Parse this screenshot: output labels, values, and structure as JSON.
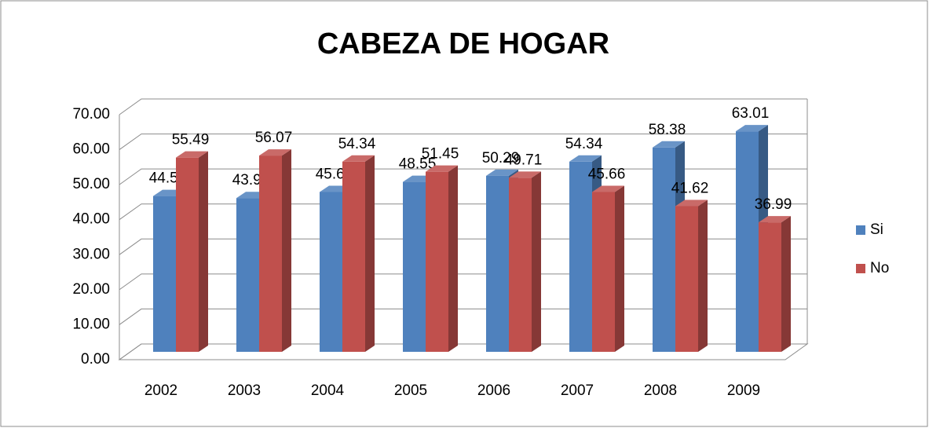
{
  "chart_data": {
    "type": "bar3d",
    "title": "CABEZA DE HOGAR",
    "categories": [
      "2002",
      "2003",
      "2004",
      "2005",
      "2006",
      "2007",
      "2008",
      "2009"
    ],
    "series": [
      {
        "name": "Si",
        "color": "#4f81bd",
        "values": [
          44.51,
          43.93,
          45.66,
          48.55,
          50.29,
          54.34,
          58.38,
          63.01
        ]
      },
      {
        "name": "No",
        "color": "#c0504d",
        "values": [
          55.49,
          56.07,
          54.34,
          51.45,
          49.71,
          45.66,
          41.62,
          36.99
        ]
      }
    ],
    "ylim": [
      0,
      70
    ],
    "yticks": [
      {
        "value": 0,
        "label": "0.00"
      },
      {
        "value": 10,
        "label": "10.00"
      },
      {
        "value": 20,
        "label": "20.00"
      },
      {
        "value": 30,
        "label": "30.00"
      },
      {
        "value": 40,
        "label": "40.00"
      },
      {
        "value": 50,
        "label": "50.00"
      },
      {
        "value": 60,
        "label": "60.00"
      },
      {
        "value": 70,
        "label": "70.00"
      }
    ],
    "grid": true,
    "legend": "right"
  }
}
